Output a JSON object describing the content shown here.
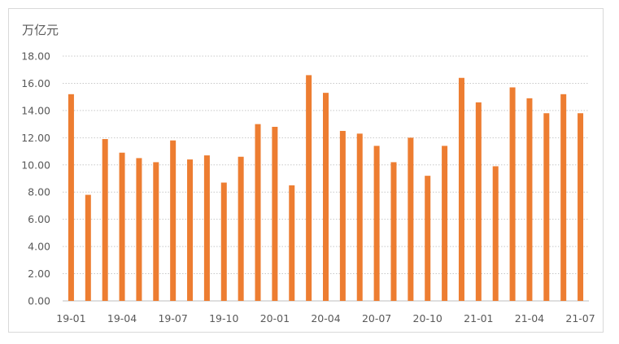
{
  "chart_data": {
    "type": "bar",
    "ylabel": "万亿元",
    "ylim": [
      0,
      18
    ],
    "yticks": [
      "0.00",
      "2.00",
      "4.00",
      "6.00",
      "8.00",
      "10.00",
      "12.00",
      "14.00",
      "16.00",
      "18.00"
    ],
    "categories": [
      "19-01",
      "19-02",
      "19-03",
      "19-04",
      "19-05",
      "19-06",
      "19-07",
      "19-08",
      "19-09",
      "19-10",
      "19-11",
      "19-12",
      "20-01",
      "20-02",
      "20-03",
      "20-04",
      "20-05",
      "20-06",
      "20-07",
      "20-08",
      "20-09",
      "20-10",
      "20-11",
      "20-12",
      "21-01",
      "21-02",
      "21-03",
      "21-04",
      "21-05",
      "21-06",
      "21-07"
    ],
    "xtick_labels": [
      "19-01",
      "19-04",
      "19-07",
      "19-10",
      "20-01",
      "20-04",
      "20-07",
      "20-10",
      "21-01",
      "21-04",
      "21-07"
    ],
    "values": [
      15.2,
      7.8,
      11.9,
      10.9,
      10.5,
      10.2,
      11.8,
      10.4,
      10.7,
      8.7,
      10.6,
      13.0,
      12.8,
      8.5,
      16.6,
      15.3,
      12.5,
      12.3,
      11.4,
      10.2,
      12.0,
      9.2,
      11.4,
      16.4,
      14.6,
      9.9,
      15.7,
      14.9,
      13.8,
      15.2,
      13.8
    ],
    "bar_color": "#ED7D31",
    "grid": true,
    "legend": "none"
  }
}
